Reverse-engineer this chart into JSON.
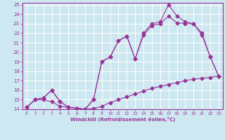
{
  "xlabel": "Windchill (Refroidissement éolien,°C)",
  "bg_color": "#cde8f0",
  "grid_color": "#ffffff",
  "line_color": "#993399",
  "xlim": [
    -0.5,
    23.5
  ],
  "ylim": [
    14,
    25.2
  ],
  "xticks": [
    0,
    1,
    2,
    3,
    4,
    5,
    6,
    7,
    8,
    9,
    10,
    11,
    12,
    13,
    14,
    15,
    16,
    17,
    18,
    19,
    20,
    21,
    22,
    23
  ],
  "yticks": [
    14,
    15,
    16,
    17,
    18,
    19,
    20,
    21,
    22,
    23,
    24,
    25
  ],
  "line1_x": [
    0,
    1,
    2,
    3,
    4,
    5,
    6,
    7,
    8,
    9,
    10,
    11,
    12,
    13,
    14,
    15,
    16,
    17,
    18,
    19,
    20,
    21,
    22,
    23
  ],
  "line1_y": [
    14.2,
    15.0,
    15.0,
    14.8,
    14.3,
    14.2,
    14.1,
    14.0,
    14.05,
    14.3,
    14.7,
    15.0,
    15.3,
    15.6,
    15.9,
    16.2,
    16.4,
    16.6,
    16.8,
    17.0,
    17.15,
    17.25,
    17.35,
    17.5
  ],
  "line2_x": [
    0,
    1,
    2,
    3,
    4,
    5,
    6,
    7,
    8,
    9,
    10,
    11,
    12,
    13,
    14,
    15,
    16,
    17,
    18,
    19,
    20,
    21,
    22,
    23
  ],
  "line2_y": [
    14.2,
    15.0,
    15.2,
    16.0,
    14.8,
    14.2,
    14.1,
    14.0,
    15.0,
    19.0,
    19.5,
    21.2,
    21.7,
    19.3,
    21.8,
    22.8,
    23.0,
    23.8,
    23.1,
    23.0,
    23.0,
    21.8,
    19.5,
    17.5
  ],
  "line3_x": [
    0,
    1,
    2,
    3,
    4,
    5,
    6,
    7,
    8,
    9,
    10,
    11,
    12,
    13,
    14,
    15,
    16,
    17,
    18,
    19,
    20,
    21,
    22,
    23
  ],
  "line3_y": [
    14.2,
    15.0,
    15.2,
    16.0,
    14.8,
    14.2,
    14.1,
    14.0,
    15.0,
    19.0,
    19.5,
    21.2,
    21.7,
    19.3,
    22.0,
    23.0,
    23.2,
    25.0,
    23.8,
    23.2,
    23.0,
    22.0,
    19.5,
    17.5
  ]
}
